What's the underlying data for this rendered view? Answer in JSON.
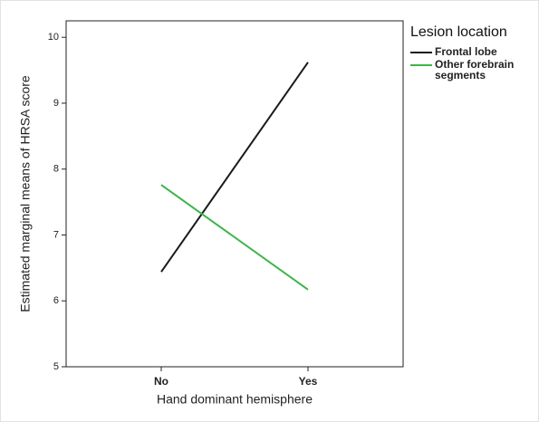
{
  "chart_data": {
    "type": "line",
    "x_label": "Hand dominant hemisphere",
    "y_label": "Estimated marginal means of HRSA score",
    "categories": [
      "No",
      "Yes"
    ],
    "series": [
      {
        "name": "Frontal lobe",
        "color": "#1a1a1a",
        "values": [
          6.44,
          9.62
        ]
      },
      {
        "name": "Other forebrain segments",
        "color": "#3cb44b",
        "values": [
          7.76,
          6.17
        ]
      }
    ],
    "legend_title": "Lesion location",
    "ylim": [
      5,
      10.25
    ],
    "yticks": [
      5,
      6,
      7,
      8,
      9,
      10
    ]
  }
}
